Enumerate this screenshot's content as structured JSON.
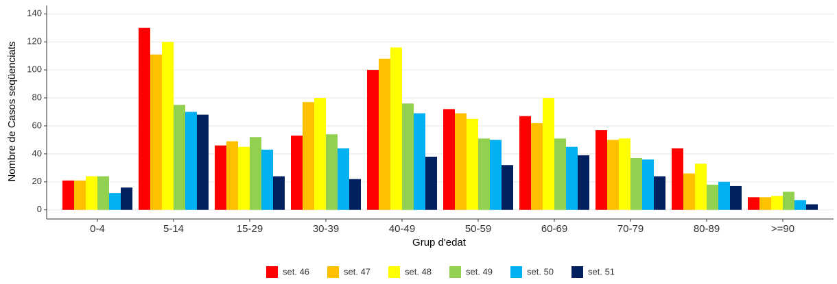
{
  "chart_data": {
    "type": "bar",
    "x_label": "Grup d'edat",
    "y_label": "Nombre de Casos seqüenciats",
    "categories": [
      "0-4",
      "5-14",
      "15-29",
      "30-39",
      "40-49",
      "50-59",
      "60-69",
      "70-79",
      "80-89",
      ">=90"
    ],
    "series": [
      {
        "name": "set. 46",
        "color": "#ff0000",
        "values": [
          21,
          130,
          46,
          53,
          100,
          72,
          67,
          57,
          44,
          9
        ]
      },
      {
        "name": "set. 47",
        "color": "#ffc000",
        "values": [
          21,
          111,
          49,
          77,
          108,
          69,
          62,
          50,
          26,
          9
        ]
      },
      {
        "name": "set. 48",
        "color": "#ffff00",
        "values": [
          24,
          120,
          45,
          80,
          116,
          65,
          80,
          51,
          33,
          10
        ]
      },
      {
        "name": "set. 49",
        "color": "#92d050",
        "values": [
          24,
          75,
          52,
          54,
          76,
          51,
          51,
          37,
          18,
          13
        ]
      },
      {
        "name": "set. 50",
        "color": "#00b0f0",
        "values": [
          12,
          70,
          43,
          44,
          69,
          50,
          45,
          36,
          20,
          7
        ]
      },
      {
        "name": "set. 51",
        "color": "#002060",
        "values": [
          16,
          68,
          24,
          22,
          38,
          32,
          39,
          24,
          17,
          4
        ]
      }
    ],
    "ylim": [
      -6.5,
      146
    ],
    "yticks": [
      0,
      20,
      40,
      60,
      80,
      100,
      120,
      140
    ],
    "grid": true,
    "legend": "bottom"
  }
}
